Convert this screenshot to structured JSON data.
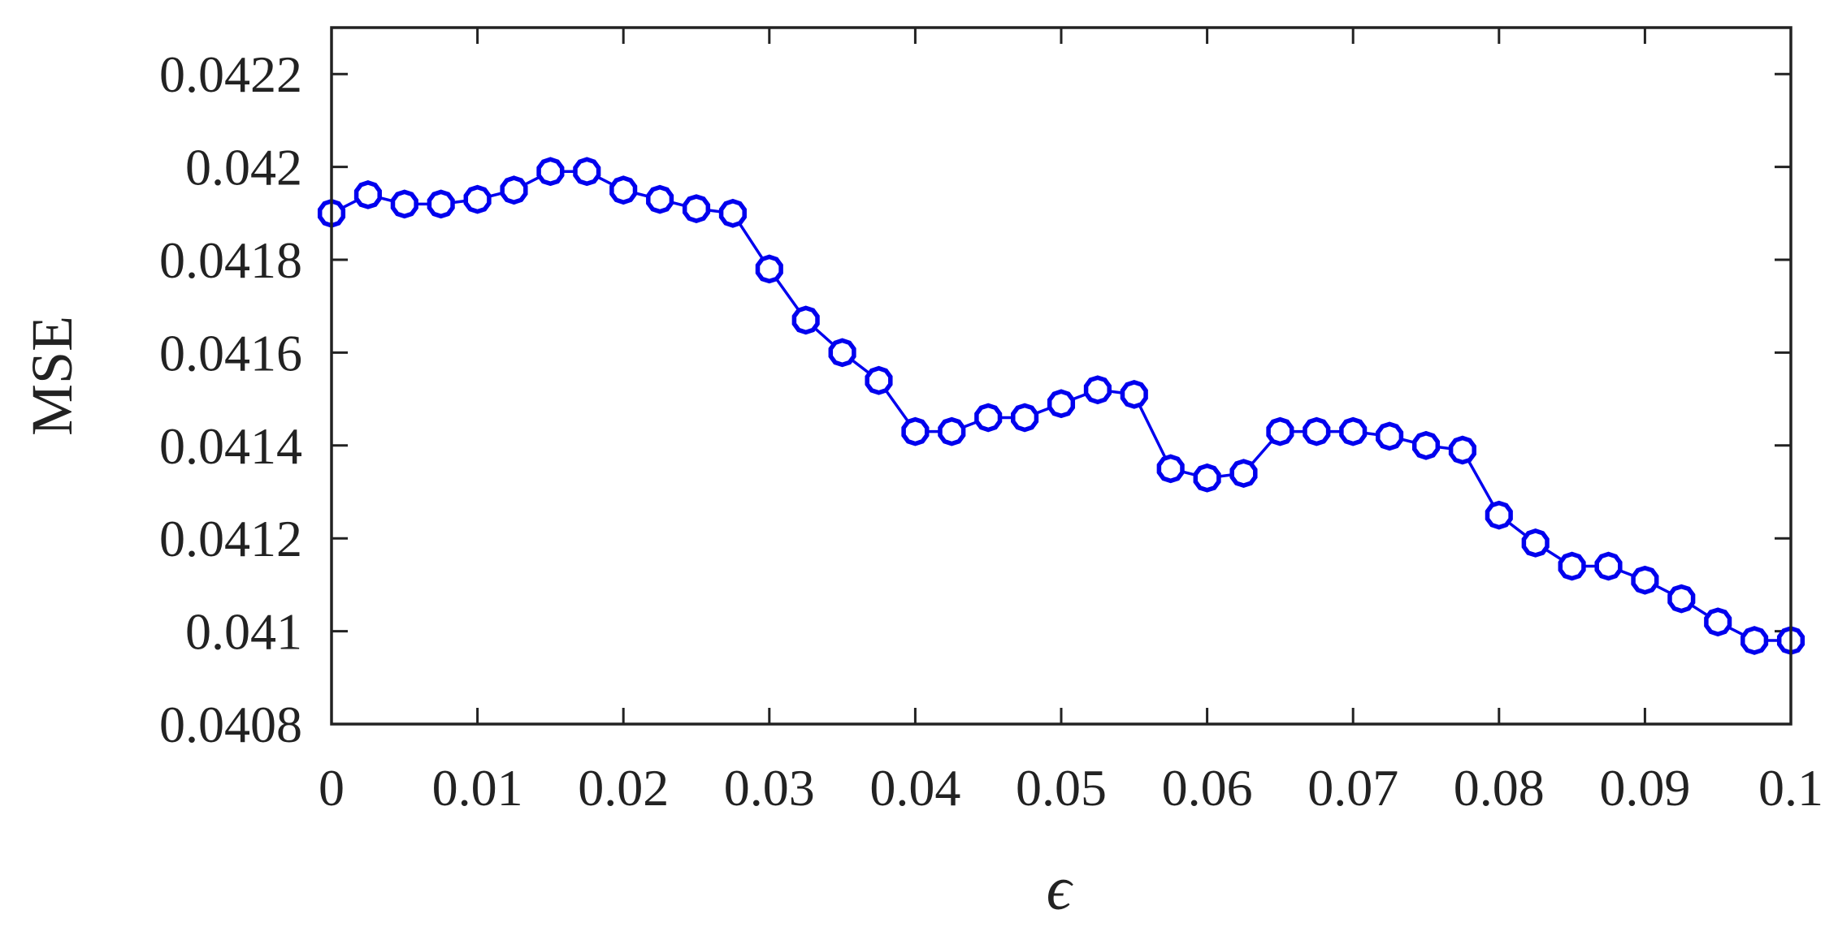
{
  "chart_data": {
    "type": "line",
    "title": "",
    "xlabel": "ϵ",
    "ylabel": "MSE",
    "xlim": [
      0,
      0.1
    ],
    "ylim": [
      0.0408,
      0.0423
    ],
    "x_ticks": [
      "0",
      "0.01",
      "0.02",
      "0.03",
      "0.04",
      "0.05",
      "0.06",
      "0.07",
      "0.08",
      "0.09",
      "0.1"
    ],
    "x_tick_values": [
      0,
      0.01,
      0.02,
      0.03,
      0.04,
      0.05,
      0.06,
      0.07,
      0.08,
      0.09,
      0.1
    ],
    "y_ticks": [
      "0.0408",
      "0.041",
      "0.0412",
      "0.0414",
      "0.0416",
      "0.0418",
      "0.042",
      "0.0422"
    ],
    "y_tick_values": [
      0.0408,
      0.041,
      0.0412,
      0.0414,
      0.0416,
      0.0418,
      0.042,
      0.0422
    ],
    "grid": false,
    "series": [
      {
        "color": "#0000ee",
        "marker": "circle",
        "x": [
          0,
          0.0025,
          0.005,
          0.0075,
          0.01,
          0.0125,
          0.015,
          0.0175,
          0.02,
          0.0225,
          0.025,
          0.0275,
          0.03,
          0.0325,
          0.035,
          0.0375,
          0.04,
          0.0425,
          0.045,
          0.0475,
          0.05,
          0.0525,
          0.055,
          0.0575,
          0.06,
          0.0625,
          0.065,
          0.0675,
          0.07,
          0.0725,
          0.075,
          0.0775,
          0.08,
          0.0825,
          0.085,
          0.0875,
          0.09,
          0.0925,
          0.095,
          0.0975,
          0.1
        ],
        "values": [
          0.0419,
          0.04194,
          0.04192,
          0.04192,
          0.04193,
          0.04195,
          0.04199,
          0.04199,
          0.04195,
          0.04193,
          0.04191,
          0.0419,
          0.04178,
          0.04167,
          0.0416,
          0.04154,
          0.04143,
          0.04143,
          0.04146,
          0.04146,
          0.04149,
          0.04152,
          0.04151,
          0.04135,
          0.04133,
          0.04134,
          0.04143,
          0.04143,
          0.04143,
          0.04142,
          0.0414,
          0.04139,
          0.04125,
          0.04119,
          0.04114,
          0.04114,
          0.04111,
          0.04107,
          0.04102,
          0.04098,
          0.04098
        ]
      }
    ]
  }
}
